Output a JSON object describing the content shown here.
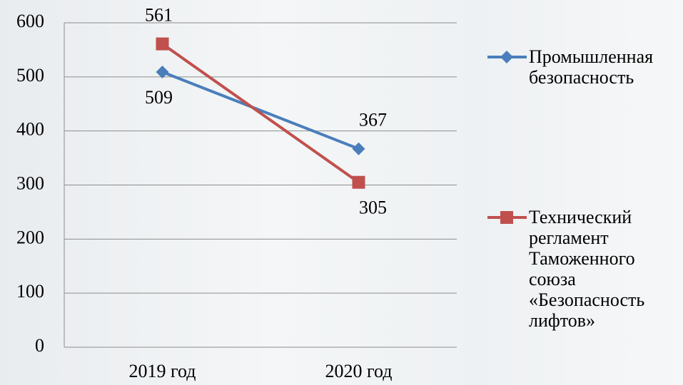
{
  "chart_data": {
    "type": "line",
    "categories": [
      "2019 год",
      "2020 год"
    ],
    "series": [
      {
        "name": "Промышленная безопасность",
        "color": "#4a7ebb",
        "marker": "diamond",
        "values": [
          509,
          367
        ]
      },
      {
        "name": "Технический регламент Таможенного союза «Безопасность лифтов»",
        "color": "#c0504d",
        "marker": "square",
        "values": [
          561,
          305
        ]
      }
    ],
    "ylim": [
      0,
      600
    ],
    "yticks": [
      0,
      100,
      200,
      300,
      400,
      500,
      600
    ],
    "grid": true,
    "legend": "right"
  }
}
